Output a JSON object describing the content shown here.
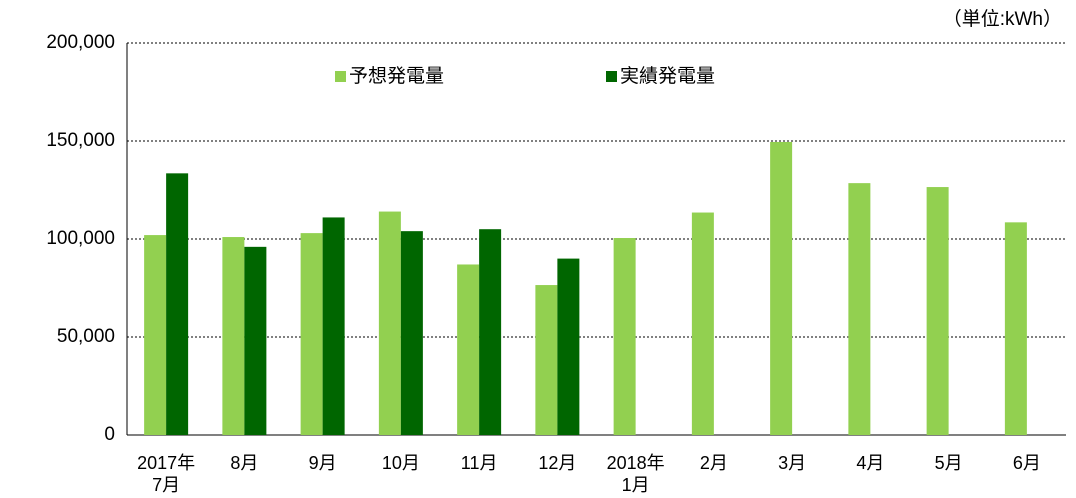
{
  "chart_data": {
    "type": "bar",
    "unit_label": "（単位:kWh）",
    "categories": [
      "2017年\n7月",
      "8月",
      "9月",
      "10月",
      "11月",
      "12月",
      "2018年\n1月",
      "2月",
      "3月",
      "4月",
      "5月",
      "6月"
    ],
    "series": [
      {
        "name": "予想発電量",
        "color": "#92d050",
        "values": [
          102000,
          101000,
          103000,
          114000,
          87000,
          76500,
          100500,
          113500,
          149500,
          128500,
          126500,
          108500
        ]
      },
      {
        "name": "実績発電量",
        "color": "#006600",
        "values": [
          133500,
          96000,
          111000,
          104000,
          105000,
          90000,
          null,
          null,
          null,
          null,
          null,
          null
        ]
      }
    ],
    "ylim": [
      0,
      200000
    ],
    "yticks": [
      0,
      {
        "value": 50000,
        "label": "50,000"
      },
      {
        "value": 100000,
        "label": "100,000"
      },
      {
        "value": 150000,
        "label": "150,000"
      },
      {
        "value": 200000,
        "label": "200,000"
      }
    ],
    "grid": true
  }
}
